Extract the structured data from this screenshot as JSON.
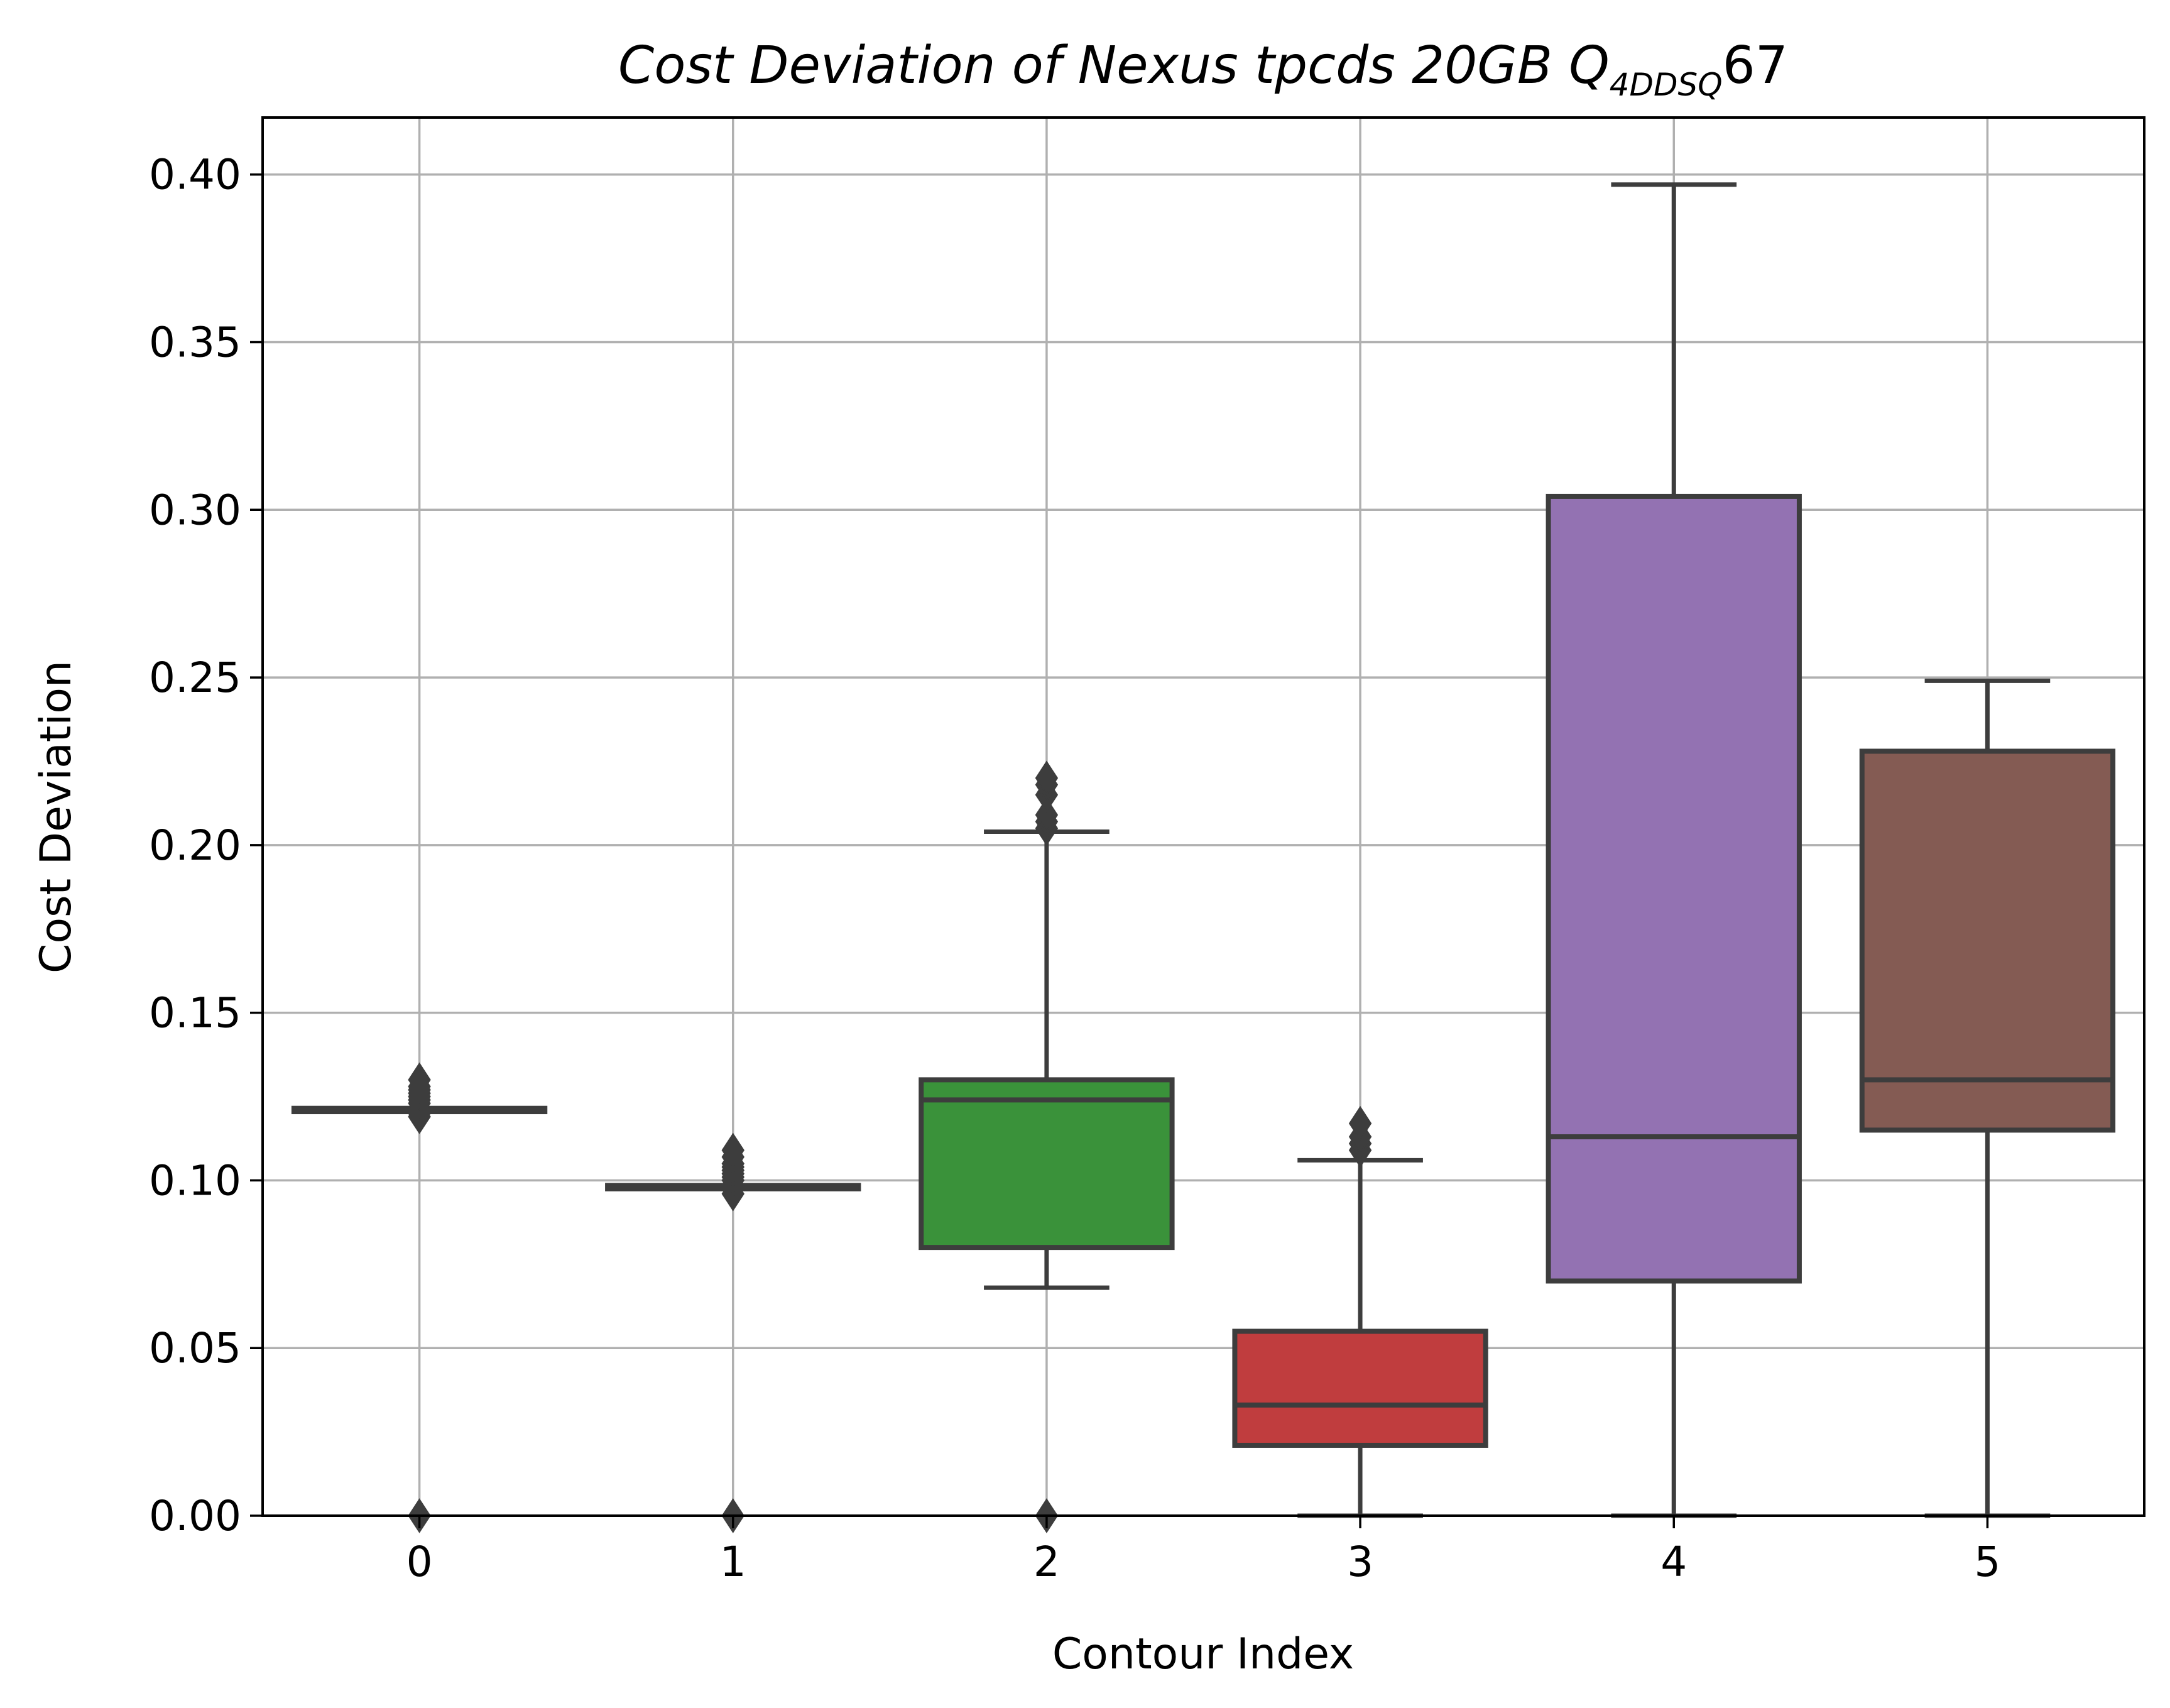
{
  "chart_data": {
    "type": "box",
    "title": "Cost Deviation of Nexus tpcds  20GB  Q",
    "title_subscript": "4DDSQ",
    "title_suffix": "67",
    "xlabel": "Contour Index",
    "ylabel": "Cost Deviation",
    "ylim": [
      0.0,
      0.417
    ],
    "xlim": [
      -0.5,
      5.5
    ],
    "yticks": [
      0.0,
      0.05,
      0.1,
      0.15,
      0.2,
      0.25,
      0.3,
      0.35,
      0.4
    ],
    "ytick_labels": [
      "0.00",
      "0.05",
      "0.10",
      "0.15",
      "0.20",
      "0.25",
      "0.30",
      "0.35",
      "0.40"
    ],
    "categories": [
      "0",
      "1",
      "2",
      "3",
      "4",
      "5"
    ],
    "grid": true,
    "boxes": [
      {
        "category": "0",
        "color": "#3a6fa3",
        "whisker_low": 0.1205,
        "q1": 0.1205,
        "median": 0.121,
        "q3": 0.1215,
        "whisker_high": 0.1215,
        "outliers": [
          0.0,
          0.119,
          0.12,
          0.123,
          0.124,
          0.125,
          0.126,
          0.127,
          0.128,
          0.13
        ]
      },
      {
        "category": "1",
        "color": "#d8812c",
        "whisker_low": 0.0975,
        "q1": 0.0975,
        "median": 0.098,
        "q3": 0.0985,
        "whisker_high": 0.0985,
        "outliers": [
          0.0,
          0.096,
          0.1,
          0.101,
          0.102,
          0.103,
          0.104,
          0.105,
          0.107,
          0.109
        ]
      },
      {
        "category": "2",
        "color": "#3a923a",
        "whisker_low": 0.068,
        "q1": 0.08,
        "median": 0.124,
        "q3": 0.13,
        "whisker_high": 0.204,
        "outliers": [
          0.0,
          0.205,
          0.207,
          0.209,
          0.215,
          0.218,
          0.22
        ]
      },
      {
        "category": "3",
        "color": "#c03d3e",
        "whisker_low": 0.0,
        "q1": 0.021,
        "median": 0.033,
        "q3": 0.055,
        "whisker_high": 0.106,
        "outliers": [
          0.109,
          0.111,
          0.113,
          0.117
        ]
      },
      {
        "category": "4",
        "color": "#9372b2",
        "whisker_low": 0.0,
        "q1": 0.07,
        "median": 0.113,
        "q3": 0.304,
        "whisker_high": 0.397,
        "outliers": []
      },
      {
        "category": "5",
        "color": "#845b53",
        "whisker_low": 0.0,
        "q1": 0.115,
        "median": 0.13,
        "q3": 0.228,
        "whisker_high": 0.249,
        "outliers": []
      }
    ]
  }
}
